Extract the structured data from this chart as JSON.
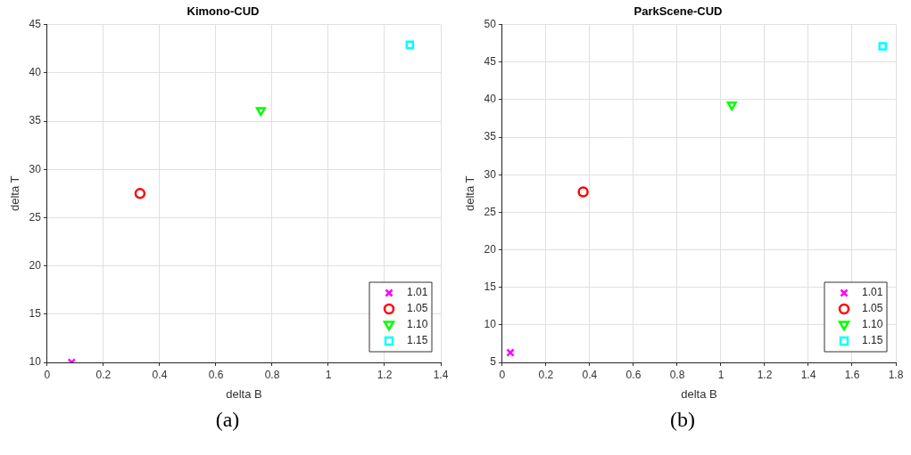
{
  "chart_data": [
    {
      "type": "scatter",
      "title": "Kimono-CUD",
      "xlabel": "delta B",
      "ylabel": "delta T",
      "xlim": [
        0,
        1.4
      ],
      "xticks": [
        0,
        0.2,
        0.4,
        0.6,
        0.8,
        1,
        1.2,
        1.4
      ],
      "ylim": [
        10,
        45
      ],
      "yticks": [
        10,
        15,
        20,
        25,
        30,
        35,
        40,
        45
      ],
      "grid": true,
      "legend": "bottom right",
      "annotations": [
        "(a)"
      ],
      "series": [
        {
          "name": "1.01",
          "color": "#ff00ff",
          "marker": "cross",
          "x": [
            0.087
          ],
          "values": [
            10
          ]
        },
        {
          "name": "1.05",
          "color": "#ff0000",
          "marker": "circle",
          "x": [
            0.33
          ],
          "values": [
            27.5
          ]
        },
        {
          "name": "1.10",
          "color": "#00ff00",
          "marker": "triangle",
          "x": [
            0.76
          ],
          "values": [
            36.1
          ]
        },
        {
          "name": "1.15",
          "color": "#00ffff",
          "marker": "square",
          "x": [
            1.29
          ],
          "values": [
            42.9
          ]
        }
      ]
    },
    {
      "type": "scatter",
      "title": "ParkScene-CUD",
      "xlabel": "delta B",
      "ylabel": "delta T",
      "xlim": [
        0,
        1.8
      ],
      "xticks": [
        0,
        0.2,
        0.4,
        0.6,
        0.8,
        1,
        1.2,
        1.4,
        1.6,
        1.8
      ],
      "ylim": [
        5,
        50
      ],
      "yticks": [
        5,
        10,
        15,
        20,
        25,
        30,
        35,
        40,
        45,
        50
      ],
      "grid": true,
      "legend": "bottom right",
      "annotations": [
        "(b)"
      ],
      "series": [
        {
          "name": "1.01",
          "color": "#ff00ff",
          "marker": "cross",
          "x": [
            0.037
          ],
          "values": [
            6.3
          ]
        },
        {
          "name": "1.05",
          "color": "#ff0000",
          "marker": "circle",
          "x": [
            0.37
          ],
          "values": [
            27.7
          ]
        },
        {
          "name": "1.10",
          "color": "#00ff00",
          "marker": "triangle",
          "x": [
            1.05
          ],
          "values": [
            39.3
          ]
        },
        {
          "name": "1.15",
          "color": "#00ffff",
          "marker": "square",
          "x": [
            1.74
          ],
          "values": [
            47.1
          ]
        }
      ]
    }
  ]
}
